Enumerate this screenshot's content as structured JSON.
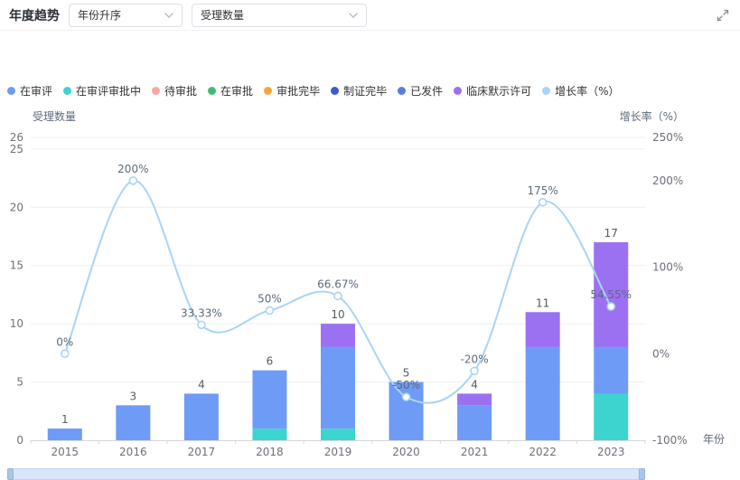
{
  "header": {
    "title": "年度趋势",
    "sort_select": {
      "value": "年份升序"
    },
    "metric_select": {
      "value": "受理数量"
    }
  },
  "icons": {
    "select_chevron": "chevron-down",
    "panel_expand": "expand-corners"
  },
  "legend": {
    "items": [
      {
        "label": "在审评",
        "color": "#6E9BF5"
      },
      {
        "label": "在审评审批中",
        "color": "#3DD3CE"
      },
      {
        "label": "待审批",
        "color": "#F7A8A0"
      },
      {
        "label": "在审批",
        "color": "#41BB75"
      },
      {
        "label": "审批完毕",
        "color": "#F5A43C"
      },
      {
        "label": "制证完毕",
        "color": "#3A5BD9"
      },
      {
        "label": "已发件",
        "color": "#5B7BE0"
      },
      {
        "label": "临床默示许可",
        "color": "#9B71F2"
      },
      {
        "label": "增长率（%）",
        "color": "#A8D5F5"
      }
    ]
  },
  "chart_data": {
    "type": "bar",
    "subtype": "stacked-bar-with-line",
    "categories": [
      "2015",
      "2016",
      "2017",
      "2018",
      "2019",
      "2020",
      "2021",
      "2022",
      "2023"
    ],
    "stacked_series": [
      {
        "name": "在审评审批中",
        "color": "#3DD3CE",
        "values": [
          0,
          0,
          0,
          1,
          1,
          0,
          0,
          0,
          4
        ]
      },
      {
        "name": "在审评",
        "color": "#6E9BF5",
        "values": [
          1,
          3,
          4,
          5,
          7,
          5,
          3,
          8,
          4
        ]
      },
      {
        "name": "临床默示许可",
        "color": "#9B71F2",
        "values": [
          0,
          0,
          0,
          0,
          2,
          0,
          1,
          3,
          9
        ]
      }
    ],
    "totals": [
      1,
      3,
      4,
      6,
      10,
      5,
      4,
      11,
      17
    ],
    "line_series": {
      "name": "增长率（%）",
      "color": "#A8D5F5",
      "values": [
        0,
        200,
        33.33,
        50,
        66.67,
        -50,
        -20,
        175,
        54.55
      ],
      "labels": [
        "0%",
        "200%",
        "33.33%",
        "50%",
        "66.67%",
        "-50%",
        "-20%",
        "175%",
        "54.55%"
      ]
    },
    "left_axis": {
      "name": "受理数量",
      "min": 0,
      "max": 26,
      "ticks": [
        26,
        25,
        20,
        15,
        10,
        5,
        0
      ]
    },
    "right_axis": {
      "name": "增长率（%）",
      "min": -100,
      "max": 250,
      "ticks": [
        "250%",
        "200%",
        "100%",
        "0%",
        "-100%"
      ],
      "tick_values": [
        250,
        200,
        100,
        0,
        -100
      ]
    },
    "x_axis_name": "年份",
    "legend_position": "top-left",
    "grid": true
  }
}
